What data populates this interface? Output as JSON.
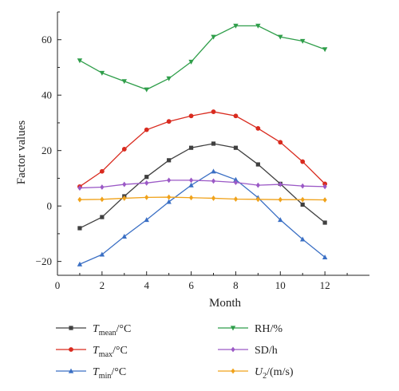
{
  "chart_data": {
    "type": "line",
    "title": "",
    "xlabel": "Month",
    "ylabel": "Factor values",
    "xlim": [
      0,
      14
    ],
    "ylim": [
      -25,
      70
    ],
    "xticks": [
      0,
      2,
      4,
      6,
      8,
      10,
      12
    ],
    "yticks": [
      -20,
      0,
      20,
      40,
      60
    ],
    "grid": false,
    "legend_position": "bottom",
    "x": [
      1,
      2,
      3,
      4,
      5,
      6,
      7,
      8,
      9,
      10,
      11,
      12
    ],
    "series": [
      {
        "name": "T",
        "sub": "mean",
        "unit": "/°C",
        "color": "#404040",
        "marker": "square",
        "values": [
          -8,
          -4,
          3.5,
          10.5,
          16.5,
          21,
          22.5,
          21,
          15,
          8,
          0.5,
          -6
        ]
      },
      {
        "name": "T",
        "sub": "max",
        "unit": "/°C",
        "color": "#d92b1f",
        "marker": "circle",
        "values": [
          7,
          12.5,
          20.5,
          27.5,
          30.5,
          32.5,
          34,
          32.5,
          28,
          23,
          16,
          8
        ]
      },
      {
        "name": "T",
        "sub": "min",
        "unit": "/°C",
        "color": "#3a6fc4",
        "marker": "triangle-up",
        "values": [
          -21,
          -17.5,
          -11,
          -5,
          1.5,
          7.5,
          12.5,
          9.5,
          3,
          -5,
          -12,
          -18.5
        ]
      },
      {
        "name": "RH/%",
        "sub": "",
        "unit": "",
        "color": "#2f9e4a",
        "marker": "triangle-down",
        "values": [
          52.5,
          48,
          45,
          42,
          46,
          52,
          61,
          65,
          65,
          61,
          59.5,
          56.5
        ]
      },
      {
        "name": "SD/h",
        "sub": "",
        "unit": "",
        "color": "#9b59c6",
        "marker": "diamond",
        "values": [
          6.5,
          6.8,
          7.8,
          8.3,
          9.3,
          9.3,
          9,
          8.5,
          7.5,
          7.8,
          7.2,
          7
        ]
      },
      {
        "name": "U",
        "sub": "2",
        "unit": "/(m/s)",
        "color": "#f0a21a",
        "marker": "diamond",
        "values": [
          2.3,
          2.4,
          2.8,
          3.1,
          3.2,
          3,
          2.8,
          2.5,
          2.4,
          2.3,
          2.3,
          2.2
        ]
      }
    ]
  }
}
